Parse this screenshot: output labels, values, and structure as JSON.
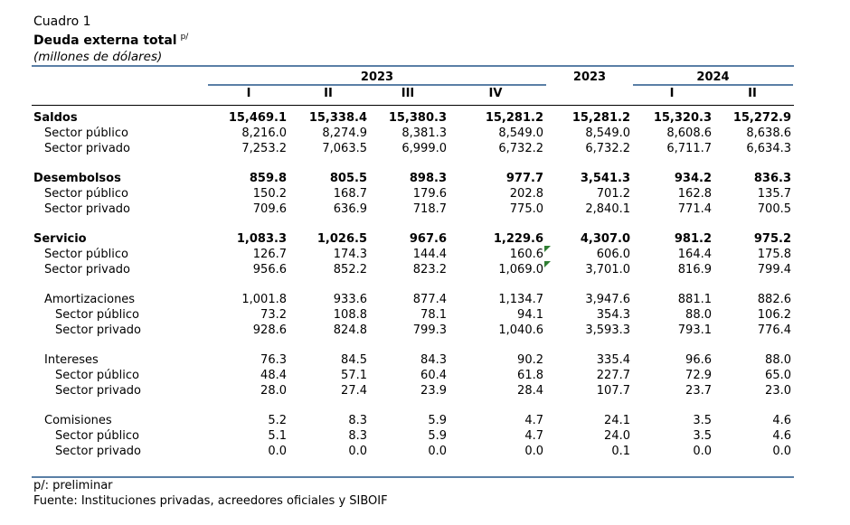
{
  "header": {
    "cuadro": "Cuadro 1",
    "title": "Deuda externa total",
    "title_sup": "p/",
    "units": "(millones de dólares)"
  },
  "columns": {
    "group_2023": "2023",
    "q": [
      "I",
      "II",
      "III",
      "IV"
    ],
    "year_2023": "2023",
    "group_2024": "2024",
    "q2024": [
      "I",
      "II"
    ]
  },
  "rows": [
    {
      "label": "Saldos",
      "style": "bold",
      "values": [
        "15,469.1",
        "15,338.4",
        "15,380.3",
        "15,281.2",
        "15,281.2",
        "15,320.3",
        "15,272.9"
      ]
    },
    {
      "label": "Sector público",
      "style": "sub",
      "values": [
        "8,216.0",
        "8,274.9",
        "8,381.3",
        "8,549.0",
        "8,549.0",
        "8,608.6",
        "8,638.6"
      ]
    },
    {
      "label": "Sector privado",
      "style": "sub",
      "values": [
        "7,253.2",
        "7,063.5",
        "6,999.0",
        "6,732.2",
        "6,732.2",
        "6,711.7",
        "6,634.3"
      ]
    },
    {
      "label": "Desembolsos",
      "style": "bold",
      "values": [
        "859.8",
        "805.5",
        "898.3",
        "977.7",
        "3,541.3",
        "934.2",
        "836.3"
      ]
    },
    {
      "label": "Sector público",
      "style": "sub",
      "values": [
        "150.2",
        "168.7",
        "179.6",
        "202.8",
        "701.2",
        "162.8",
        "135.7"
      ]
    },
    {
      "label": "Sector privado",
      "style": "sub",
      "values": [
        "709.6",
        "636.9",
        "718.7",
        "775.0",
        "2,840.1",
        "771.4",
        "700.5"
      ]
    },
    {
      "label": "Servicio",
      "style": "bold",
      "values": [
        "1,083.3",
        "1,026.5",
        "967.6",
        "1,229.6",
        "4,307.0",
        "981.2",
        "975.2"
      ]
    },
    {
      "label": "Sector público",
      "style": "sub",
      "values": [
        "126.7",
        "174.3",
        "144.4",
        "160.6",
        "606.0",
        "164.4",
        "175.8"
      ]
    },
    {
      "label": "Sector privado",
      "style": "sub",
      "values": [
        "956.6",
        "852.2",
        "823.2",
        "1,069.0",
        "3,701.0",
        "816.9",
        "799.4"
      ]
    },
    {
      "label": "Amortizaciones",
      "style": "sub",
      "values": [
        "1,001.8",
        "933.6",
        "877.4",
        "1,134.7",
        "3,947.6",
        "881.1",
        "882.6"
      ]
    },
    {
      "label": "Sector público",
      "style": "subsub",
      "values": [
        "73.2",
        "108.8",
        "78.1",
        "94.1",
        "354.3",
        "88.0",
        "106.2"
      ]
    },
    {
      "label": "Sector privado",
      "style": "subsub",
      "values": [
        "928.6",
        "824.8",
        "799.3",
        "1,040.6",
        "3,593.3",
        "793.1",
        "776.4"
      ]
    },
    {
      "label": "Intereses",
      "style": "sub",
      "values": [
        "76.3",
        "84.5",
        "84.3",
        "90.2",
        "335.4",
        "96.6",
        "88.0"
      ]
    },
    {
      "label": "Sector público",
      "style": "subsub",
      "values": [
        "48.4",
        "57.1",
        "60.4",
        "61.8",
        "227.7",
        "72.9",
        "65.0"
      ]
    },
    {
      "label": "Sector privado",
      "style": "subsub",
      "values": [
        "28.0",
        "27.4",
        "23.9",
        "28.4",
        "107.7",
        "23.7",
        "23.0"
      ]
    },
    {
      "label": "Comisiones",
      "style": "sub",
      "values": [
        "5.2",
        "8.3",
        "5.9",
        "4.7",
        "24.1",
        "3.5",
        "4.6"
      ]
    },
    {
      "label": "Sector público",
      "style": "subsub",
      "values": [
        "5.1",
        "8.3",
        "5.9",
        "4.7",
        "24.0",
        "3.5",
        "4.6"
      ]
    },
    {
      "label": "Sector privado",
      "style": "subsub",
      "values": [
        "0.0",
        "0.0",
        "0.0",
        "0.0",
        "0.1",
        "0.0",
        "0.0"
      ]
    }
  ],
  "footer": {
    "note": "p/: preliminar",
    "source": "Fuente: Instituciones privadas, acreedores oficiales y SIBOIF"
  },
  "colors": {
    "rule": "#5a7fa6",
    "marker": "#2e7d32"
  }
}
